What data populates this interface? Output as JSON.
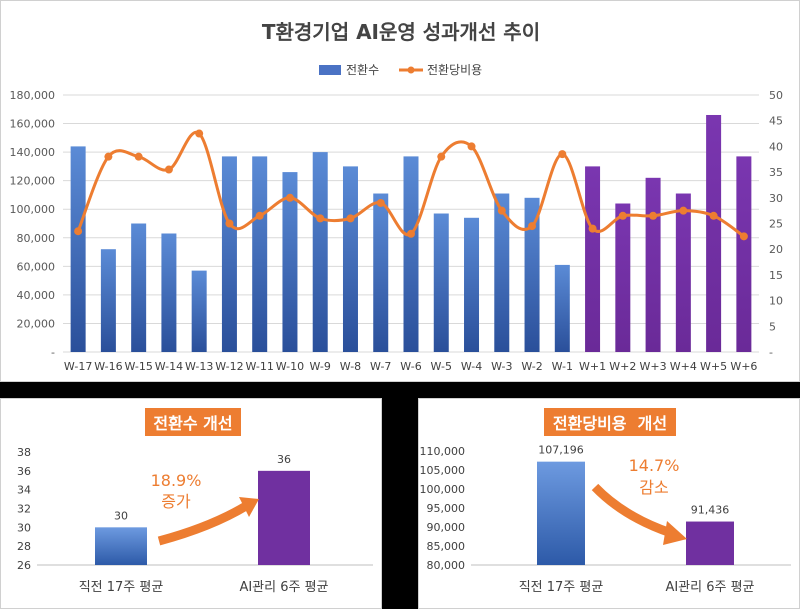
{
  "chart_data": [
    {
      "type": "bar+line",
      "title": "T환경기업 AI운영 성과개선 추이",
      "categories": [
        "W-17",
        "W-16",
        "W-15",
        "W-14",
        "W-13",
        "W-12",
        "W-11",
        "W-10",
        "W-9",
        "W-8",
        "W-7",
        "W-6",
        "W-5",
        "W-4",
        "W-3",
        "W-2",
        "W-1",
        "W+1",
        "W+2",
        "W+3",
        "W+4",
        "W+5",
        "W+6"
      ],
      "series": [
        {
          "name": "전환수",
          "type": "bar",
          "axis": "left",
          "values": [
            144000,
            72000,
            90000,
            83000,
            57000,
            137000,
            137000,
            126000,
            140000,
            130000,
            111000,
            137000,
            97000,
            94000,
            111000,
            108000,
            61000,
            130000,
            104000,
            122000,
            111000,
            166000,
            137000
          ]
        },
        {
          "name": "전환당비용",
          "type": "line",
          "axis": "right",
          "values": [
            23.5,
            38,
            38,
            35.5,
            42.5,
            25,
            26.5,
            30,
            26,
            26,
            29,
            23,
            38,
            40,
            27.5,
            24.5,
            38.5,
            24,
            26.5,
            26.5,
            27.5,
            26.5,
            22.5
          ]
        }
      ],
      "ylim_left": [
        0,
        180000
      ],
      "ylim_right": [
        0,
        50
      ],
      "yticks_left": [
        "-",
        "20,000",
        "40,000",
        "60,000",
        "80,000",
        "100,000",
        "120,000",
        "140,000",
        "160,000",
        "180,000"
      ],
      "yticks_right": [
        "-",
        "5",
        "10",
        "15",
        "20",
        "25",
        "30",
        "35",
        "40",
        "45",
        "50"
      ],
      "bar_colors": {
        "before": "#4a72c4",
        "after": "#7030a0"
      },
      "line_color": "#ed7d31",
      "legend_position": "top"
    },
    {
      "type": "bar",
      "title": "전환수 개선",
      "categories": [
        "직전 17주 평균",
        "AI관리 6주 평균"
      ],
      "values": [
        30,
        36
      ],
      "value_labels": [
        "30",
        "36"
      ],
      "ylim": [
        26,
        38
      ],
      "yticks": [
        "26",
        "28",
        "30",
        "32",
        "34",
        "36",
        "38"
      ],
      "annotation": {
        "line1": "18.9%",
        "line2": "증가"
      },
      "colors": [
        "#5b8bd6",
        "#7030a0"
      ]
    },
    {
      "type": "bar",
      "title": "전환당비용  개선",
      "categories": [
        "직전 17주 평균",
        "AI관리 6주 평균"
      ],
      "values": [
        107196,
        91436
      ],
      "value_labels": [
        "107,196",
        "91,436"
      ],
      "ylim": [
        80000,
        110000
      ],
      "yticks": [
        "80,000",
        "85,000",
        "90,000",
        "95,000",
        "100,000",
        "105,000",
        "110,000"
      ],
      "annotation": {
        "line1": "14.7%",
        "line2": "감소"
      },
      "colors": [
        "#5b8bd6",
        "#7030a0"
      ]
    }
  ]
}
